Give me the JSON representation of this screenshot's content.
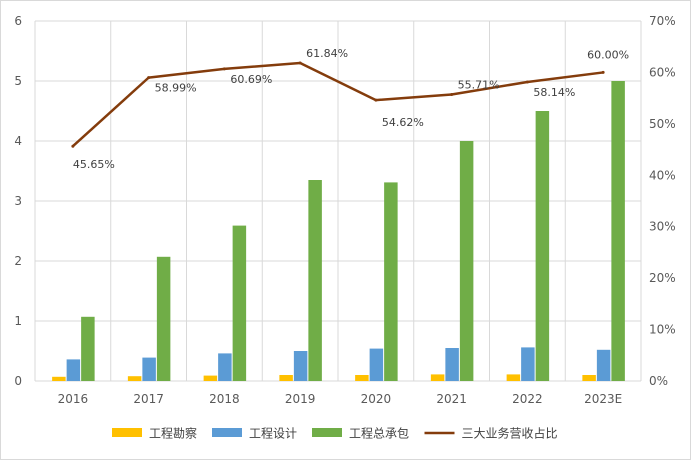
{
  "chart_data": {
    "type": "bar",
    "categories": [
      "2016",
      "2017",
      "2018",
      "2019",
      "2020",
      "2021",
      "2022",
      "2023E"
    ],
    "series": [
      {
        "name": "工程勘察",
        "kind": "bar",
        "axis": "left",
        "color": "#ffc000",
        "values": [
          0.07,
          0.08,
          0.09,
          0.1,
          0.1,
          0.11,
          0.11,
          0.1
        ]
      },
      {
        "name": "工程设计",
        "kind": "bar",
        "axis": "left",
        "color": "#5b9bd5",
        "values": [
          0.36,
          0.39,
          0.46,
          0.5,
          0.54,
          0.55,
          0.56,
          0.52
        ]
      },
      {
        "name": "工程总承包",
        "kind": "bar",
        "axis": "left",
        "color": "#70ad47",
        "values": [
          1.07,
          2.07,
          2.59,
          3.35,
          3.31,
          4.0,
          4.5,
          5.0
        ]
      },
      {
        "name": "三大业务营收占比",
        "kind": "line",
        "axis": "right",
        "color": "#843c0c",
        "values": [
          45.65,
          58.99,
          60.69,
          61.84,
          54.62,
          55.71,
          58.14,
          60.0
        ],
        "labels": [
          "45.65%",
          "58.99%",
          "60.69%",
          "61.84%",
          "54.62%",
          "55.71%",
          "58.14%",
          "60.00%"
        ]
      }
    ],
    "left_axis": {
      "min": 0,
      "max": 6,
      "ticks": [
        "0",
        "1",
        "2",
        "3",
        "4",
        "5",
        "6"
      ]
    },
    "right_axis": {
      "min": 0,
      "max": 70,
      "ticks": [
        "0%",
        "10%",
        "20%",
        "30%",
        "40%",
        "50%",
        "60%",
        "70%"
      ]
    },
    "grid": true,
    "legend_position": "bottom",
    "title": "",
    "xlabel": "",
    "ylabel": ""
  }
}
